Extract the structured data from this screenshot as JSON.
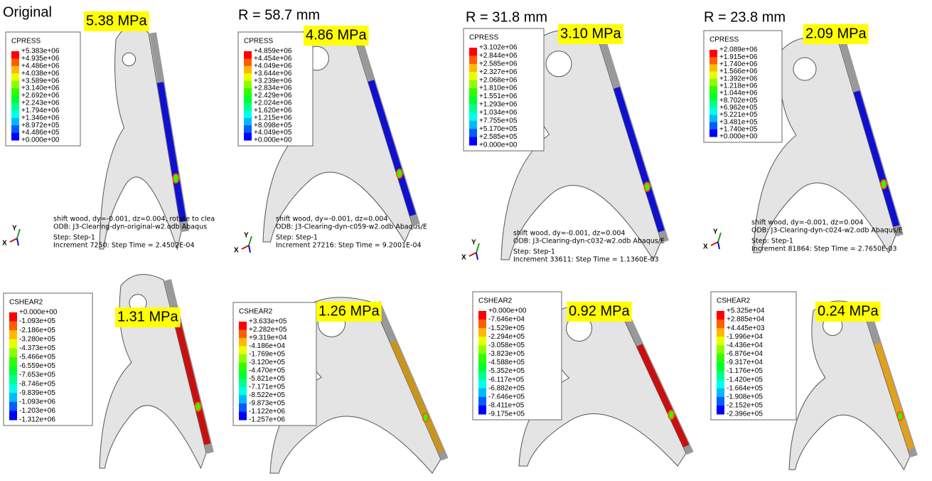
{
  "panels": [
    {
      "heading": "Original",
      "legend": {
        "title": "CPRESS",
        "labels": [
          "+5.383e+06",
          "+4.935e+06",
          "+4.486e+06",
          "+4.038e+06",
          "+3.589e+06",
          "+3.140e+06",
          "+2.692e+06",
          "+2.243e+06",
          "+1.794e+06",
          "+1.346e+06",
          "+8.972e+05",
          "+4.486e+05",
          "+0.000e+00"
        ]
      },
      "highlight": "5.38 MPa",
      "info": [
        "shift wood, dy=-0.001, dz=0.004, rotate to clea",
        "ODB: J3-Clearing-dyn-original-w2.odb    Abaqus",
        "Step: Step-1",
        "Increment     7250: Step Time =    2.4502E-04"
      ],
      "triad": [
        "Y",
        "X"
      ]
    },
    {
      "heading": "R = 58.7 mm",
      "legend": {
        "title": "CPRESS",
        "labels": [
          "+4.859e+06",
          "+4.454e+06",
          "+4.049e+06",
          "+3.644e+06",
          "+3.239e+06",
          "+2.834e+06",
          "+2.429e+06",
          "+2.024e+06",
          "+1.620e+06",
          "+1.215e+06",
          "+8.098e+05",
          "+4.049e+05",
          "+0.000e+00"
        ]
      },
      "highlight": "4.86 MPa",
      "info": [
        "shift wood, dy=-0.001, dz=0.004",
        "ODB: J3-Clearing-dyn-c059-w2.odb     Abaqus/E",
        "Step: Step-1",
        "Increment    27216: Step Time =    9.2001E-04"
      ],
      "triad": [
        "Y",
        "X"
      ]
    },
    {
      "heading": "R = 31.8 mm",
      "legend": {
        "title": "CPRESS",
        "labels": [
          "+3.102e+06",
          "+2.844e+06",
          "+2.585e+06",
          "+2.327e+06",
          "+2.068e+06",
          "+1.810e+06",
          "+1.551e+06",
          "+1.293e+06",
          "+1.034e+06",
          "+7.755e+05",
          "+5.170e+05",
          "+2.585e+05",
          "+0.000e+00"
        ]
      },
      "highlight": "3.10 MPa",
      "info": [
        "shift wood, dy=-0.001, dz=0.004",
        "ODB: J3-Clearing-dyn-c032-w2.odb     Abaqus/E",
        "Step: Step-1",
        "Increment    33611: Step Time =    1.1360E-03"
      ],
      "triad": [
        "Y",
        "X"
      ]
    },
    {
      "heading": "R = 23.8 mm",
      "legend": {
        "title": "CPRESS",
        "labels": [
          "+2.089e+06",
          "+1.915e+06",
          "+1.740e+06",
          "+1.566e+06",
          "+1.392e+06",
          "+1.218e+06",
          "+1.044e+06",
          "+8.702e+05",
          "+6.962e+05",
          "+5.221e+05",
          "+3.481e+05",
          "+1.740e+05",
          "+0.000e+00"
        ]
      },
      "highlight": "2.09 MPa",
      "info": [
        "shift wood, dy=-0.001, dz=0.004",
        "ODB: J3-Clearing-dyn-c024-w2.odb     Abaqus/E",
        "Step: Step-1",
        "Increment    81864: Step Time =    2.7650E-03"
      ],
      "triad": [
        "Y",
        "X"
      ]
    },
    {
      "legend": {
        "title": "CSHEAR2",
        "labels": [
          "+0.000e+00",
          "-1.093e+05",
          "-2.186e+05",
          "-3.280e+05",
          "-4.373e+05",
          "-5.466e+05",
          "-6.559e+05",
          "-7.653e+05",
          "-8.746e+05",
          "-9.839e+05",
          "-1.093e+06",
          "-1.203e+06",
          "-1.312e+06"
        ]
      },
      "highlight": "1.31 MPa"
    },
    {
      "legend": {
        "title": "CSHEAR2",
        "labels": [
          "+3.633e+05",
          "+2.282e+05",
          "+9.319e+04",
          "-4.186e+04",
          "-1.769e+05",
          "-3.120e+05",
          "-4.470e+05",
          "-5.821e+05",
          "-7.171e+05",
          "-8.522e+05",
          "-9.873e+05",
          "-1.122e+06",
          "-1.257e+06"
        ]
      },
      "highlight": "1.26 MPa"
    },
    {
      "legend": {
        "title": "CSHEAR2",
        "labels": [
          "+0.000e+00",
          "-7.646e+04",
          "-1.529e+05",
          "-2.294e+05",
          "-3.058e+05",
          "-3.823e+05",
          "-4.588e+05",
          "-5.352e+05",
          "-6.117e+05",
          "-6.882e+05",
          "-7.646e+05",
          "-8.411e+05",
          "-9.175e+05"
        ]
      },
      "highlight": "0.92 MPa"
    },
    {
      "legend": {
        "title": "CSHEAR2",
        "labels": [
          "+5.325e+04",
          "+2.885e+04",
          "+4.445e+03",
          "-1.996e+04",
          "-4.436e+04",
          "-6.876e+04",
          "-9.317e+04",
          "-1.176e+05",
          "-1.420e+05",
          "-1.664e+05",
          "-1.908e+05",
          "-2.152e+05",
          "-2.396e+05"
        ]
      },
      "highlight": "0.24 MPa"
    }
  ]
}
